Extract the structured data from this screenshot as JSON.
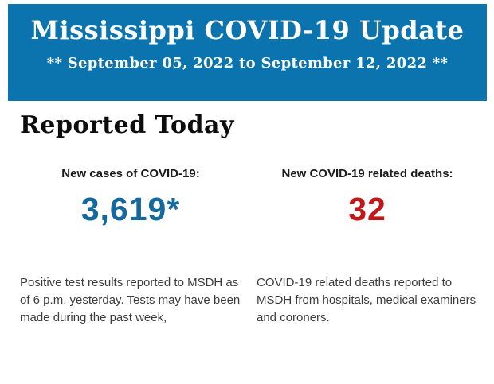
{
  "banner": {
    "title": "Mississippi COVID-19 Update",
    "date_range": "** September 05, 2022 to September 12, 2022 **",
    "background_color": "#0b74ae",
    "text_color": "#ffffff"
  },
  "section": {
    "heading": "Reported Today"
  },
  "stats": {
    "cases": {
      "label": "New cases of COVID-19:",
      "value": "3,619*",
      "value_color": "#16699e",
      "description": "Positive test results reported to MSDH as of 6 p.m. yesterday. Tests may have been made during the past week,"
    },
    "deaths": {
      "label": "New COVID-19 related deaths:",
      "value": "32",
      "value_color": "#c1181c",
      "description": "COVID-19 related deaths reported to MSDH from hospitals, medical examiners and coroners."
    }
  }
}
